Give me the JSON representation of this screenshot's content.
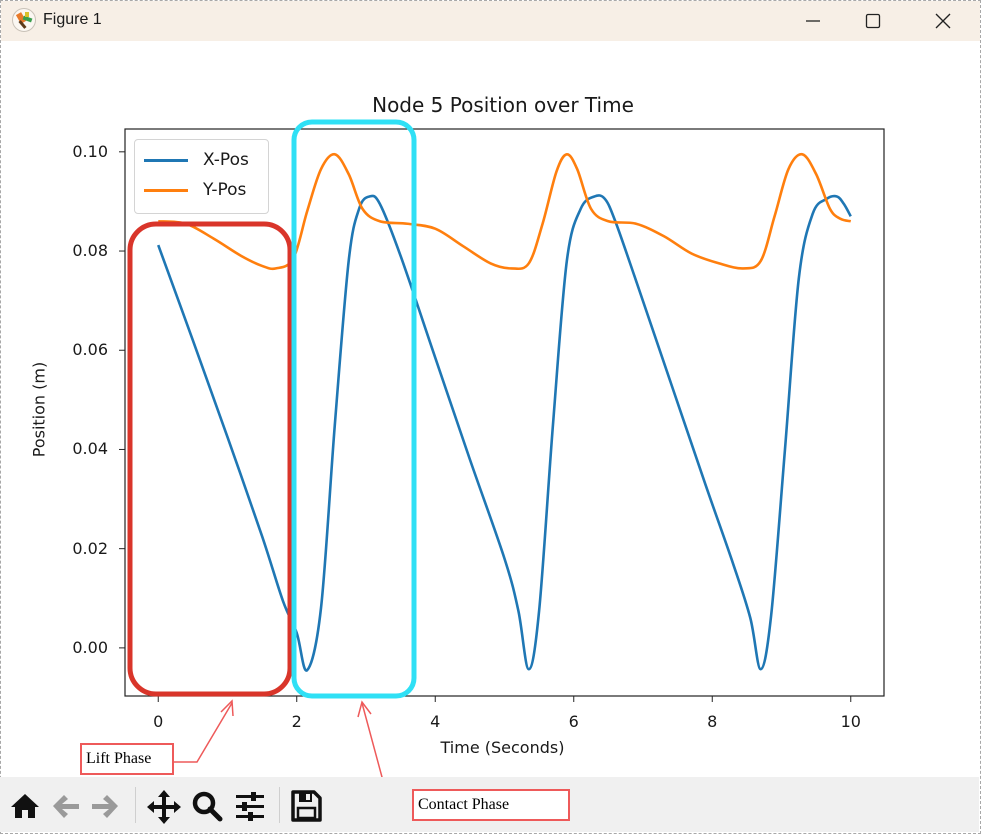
{
  "window": {
    "title": "Figure 1",
    "controls": {
      "minimize": "minimize",
      "maximize": "maximize",
      "close": "close"
    }
  },
  "toolbar": {
    "items": [
      {
        "name": "home",
        "icon": "home-icon",
        "enabled": true
      },
      {
        "name": "back",
        "icon": "arrow-left-icon",
        "enabled": false
      },
      {
        "name": "forward",
        "icon": "arrow-right-icon",
        "enabled": false
      },
      {
        "name": "pan",
        "icon": "move-icon",
        "enabled": true
      },
      {
        "name": "zoom",
        "icon": "magnifier-icon",
        "enabled": true
      },
      {
        "name": "configure-subplots",
        "icon": "sliders-icon",
        "enabled": true
      },
      {
        "name": "save",
        "icon": "floppy-disk-icon",
        "enabled": true
      }
    ]
  },
  "annotations": {
    "lift_phase": {
      "label": "Lift Phase",
      "box_color": "#d9352a",
      "x_range": [
        -0.4,
        1.95
      ]
    },
    "contact_phase": {
      "label": "Contact Phase",
      "box_color": "#2fe0f5",
      "x_range": [
        1.95,
        3.75
      ]
    },
    "arrow_color": "#ee5a5a"
  },
  "chart_data": {
    "type": "line",
    "title": "Node 5 Position over Time",
    "xlabel": "Time (Seconds)",
    "ylabel": "Position (m)",
    "xlim": [
      -0.48,
      10.48
    ],
    "ylim": [
      -0.0097,
      0.1046
    ],
    "xticks": [
      0,
      2,
      4,
      6,
      8,
      10
    ],
    "xtick_labels": [
      "0",
      "2",
      "4",
      "6",
      "8",
      "10"
    ],
    "yticks": [
      0.0,
      0.02,
      0.04,
      0.06,
      0.08,
      0.1
    ],
    "ytick_labels": [
      "0.00",
      "0.02",
      "0.04",
      "0.06",
      "0.08",
      "0.10"
    ],
    "grid": false,
    "legend_position": "upper left",
    "series": [
      {
        "name": "X-Pos",
        "color": "#1f77b4",
        "x": [
          0.0,
          0.5,
          1.0,
          1.5,
          1.8,
          2.0,
          2.15,
          2.35,
          2.55,
          2.75,
          2.9,
          3.05,
          3.2,
          3.5,
          4.0,
          4.5,
          5.0,
          5.2,
          5.35,
          5.5,
          5.7,
          5.9,
          6.1,
          6.3,
          6.45,
          6.6,
          6.9,
          7.4,
          7.9,
          8.3,
          8.55,
          8.7,
          8.85,
          9.05,
          9.25,
          9.45,
          9.65,
          9.8,
          9.9,
          10.0
        ],
        "y": [
          0.0812,
          0.062,
          0.0425,
          0.0225,
          0.0095,
          0.003,
          -0.0045,
          0.008,
          0.045,
          0.078,
          0.0885,
          0.091,
          0.0895,
          0.079,
          0.0585,
          0.038,
          0.018,
          0.0075,
          -0.0043,
          0.0075,
          0.045,
          0.078,
          0.0885,
          0.091,
          0.0905,
          0.086,
          0.074,
          0.0535,
          0.033,
          0.017,
          0.006,
          -0.0043,
          0.0065,
          0.04,
          0.0745,
          0.0875,
          0.0905,
          0.091,
          0.0895,
          0.087
        ]
      },
      {
        "name": "Y-Pos",
        "color": "#ff7f0e",
        "x": [
          0.0,
          0.4,
          0.8,
          1.2,
          1.5,
          1.7,
          1.95,
          2.15,
          2.35,
          2.55,
          2.75,
          2.95,
          3.2,
          3.6,
          4.0,
          4.4,
          4.8,
          5.1,
          5.35,
          5.55,
          5.75,
          5.9,
          6.05,
          6.25,
          6.5,
          6.9,
          7.3,
          7.7,
          8.1,
          8.45,
          8.7,
          8.9,
          9.1,
          9.3,
          9.5,
          9.7,
          9.85,
          10.0
        ],
        "y": [
          0.086,
          0.0855,
          0.0825,
          0.079,
          0.077,
          0.0765,
          0.0785,
          0.088,
          0.0965,
          0.0995,
          0.0955,
          0.0885,
          0.086,
          0.0855,
          0.0845,
          0.081,
          0.0775,
          0.0765,
          0.0775,
          0.0855,
          0.096,
          0.0995,
          0.0965,
          0.0885,
          0.086,
          0.0855,
          0.083,
          0.0795,
          0.0775,
          0.0765,
          0.078,
          0.087,
          0.0965,
          0.0995,
          0.0955,
          0.0885,
          0.0865,
          0.086
        ]
      }
    ]
  }
}
